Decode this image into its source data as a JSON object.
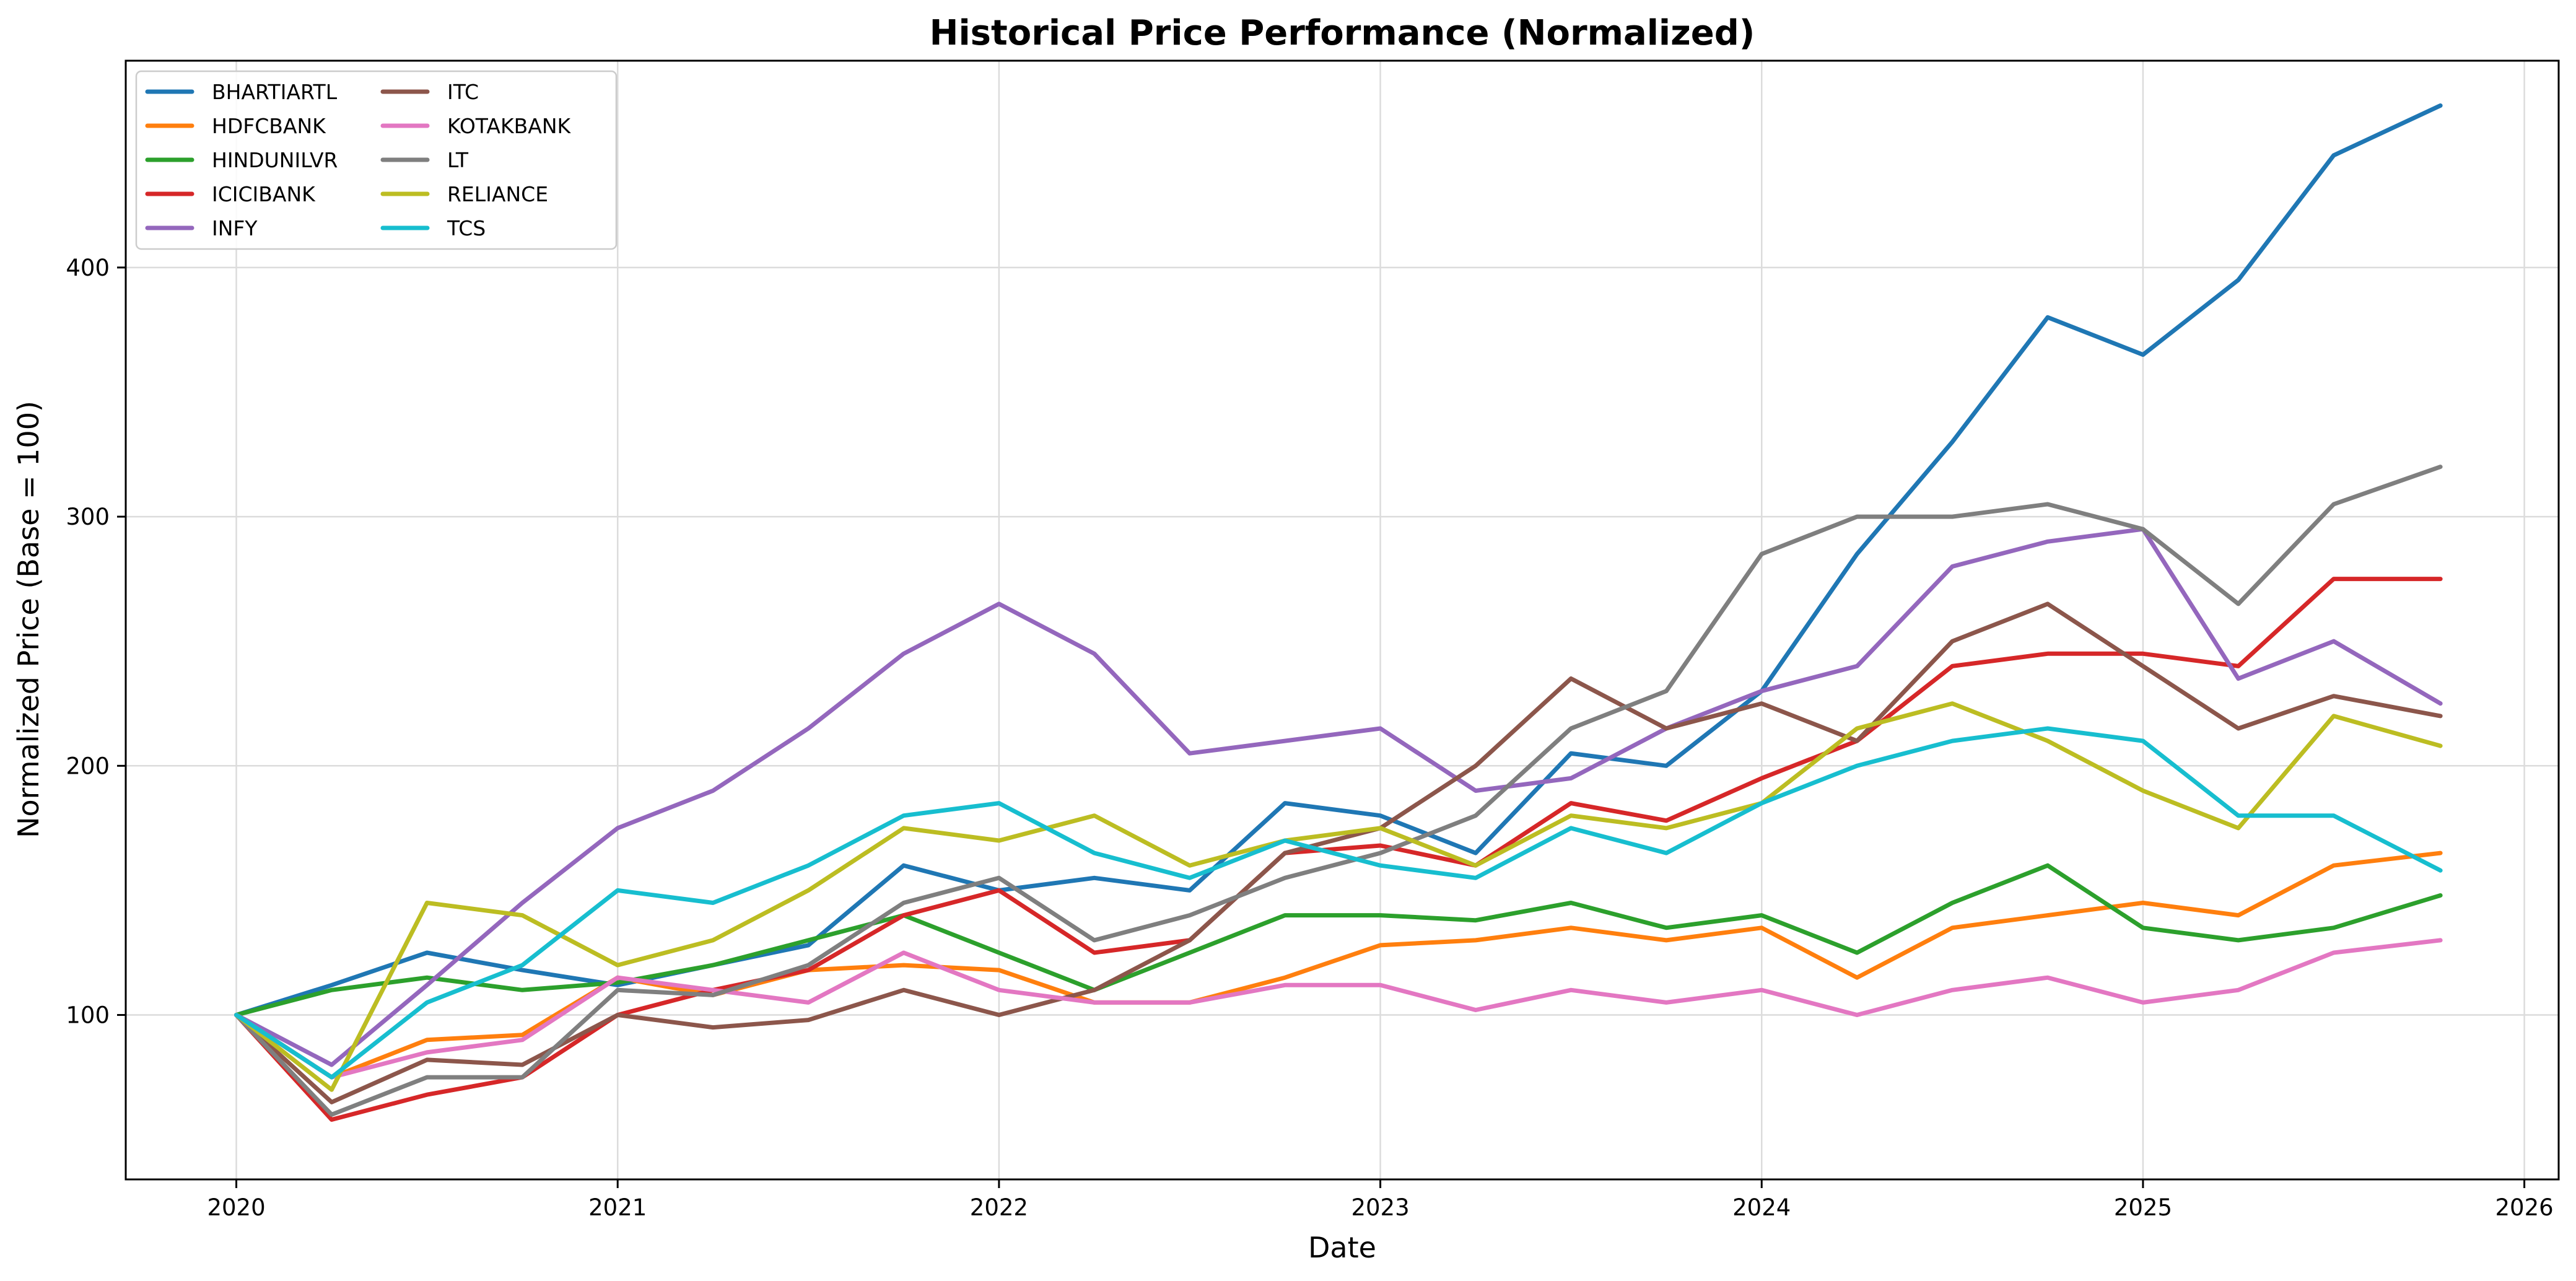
{
  "chart_data": {
    "type": "line",
    "title": "Historical Price Performance (Normalized)",
    "xlabel": "Date",
    "ylabel": "Normalized Price (Base = 100)",
    "x_ticks": [
      "2020",
      "2021",
      "2022",
      "2023",
      "2024",
      "2025",
      "2026"
    ],
    "y_ticks": [
      "100",
      "200",
      "300",
      "400"
    ],
    "xlim": [
      2019.71,
      2026.09
    ],
    "ylim": [
      34,
      483
    ],
    "grid": true,
    "legend": {
      "placement": "top-left",
      "columns": 2
    },
    "x": [
      2020.0,
      2020.25,
      2020.5,
      2020.75,
      2021.0,
      2021.25,
      2021.5,
      2021.75,
      2022.0,
      2022.25,
      2022.5,
      2022.75,
      2023.0,
      2023.25,
      2023.5,
      2023.75,
      2024.0,
      2024.25,
      2024.5,
      2024.75,
      2025.0,
      2025.25,
      2025.5,
      2025.78
    ],
    "series": [
      {
        "name": "BHARTIARTL",
        "color": "#1f77b4",
        "values": [
          100,
          112,
          125,
          118,
          112,
          120,
          128,
          160,
          150,
          155,
          150,
          185,
          180,
          165,
          205,
          200,
          230,
          285,
          330,
          380,
          365,
          395,
          445,
          465
        ]
      },
      {
        "name": "HDFCBANK",
        "color": "#ff7f0e",
        "values": [
          100,
          75,
          90,
          92,
          115,
          108,
          118,
          120,
          118,
          105,
          105,
          115,
          128,
          130,
          135,
          130,
          135,
          115,
          135,
          140,
          145,
          140,
          160,
          165
        ]
      },
      {
        "name": "HINDUNILVR",
        "color": "#2ca02c",
        "values": [
          100,
          110,
          115,
          110,
          113,
          120,
          130,
          140,
          125,
          110,
          125,
          140,
          140,
          138,
          145,
          135,
          140,
          125,
          145,
          160,
          135,
          130,
          135,
          148
        ]
      },
      {
        "name": "ICICIBANK",
        "color": "#d62728",
        "values": [
          100,
          58,
          68,
          75,
          100,
          110,
          118,
          140,
          150,
          125,
          130,
          165,
          168,
          160,
          185,
          178,
          195,
          210,
          240,
          245,
          245,
          240,
          275,
          275
        ]
      },
      {
        "name": "INFY",
        "color": "#9467bd",
        "values": [
          100,
          80,
          112,
          145,
          175,
          190,
          215,
          245,
          265,
          245,
          205,
          210,
          215,
          190,
          195,
          215,
          230,
          240,
          280,
          290,
          295,
          235,
          250,
          225
        ]
      },
      {
        "name": "ITC",
        "color": "#8c564b",
        "values": [
          100,
          65,
          82,
          80,
          100,
          95,
          98,
          110,
          100,
          110,
          130,
          165,
          175,
          200,
          235,
          215,
          225,
          210,
          250,
          265,
          240,
          215,
          228,
          220
        ]
      },
      {
        "name": "KOTAKBANK",
        "color": "#e377c2",
        "values": [
          100,
          75,
          85,
          90,
          115,
          110,
          105,
          125,
          110,
          105,
          105,
          112,
          112,
          102,
          110,
          105,
          110,
          100,
          110,
          115,
          105,
          110,
          125,
          130
        ]
      },
      {
        "name": "LT",
        "color": "#7f7f7f",
        "values": [
          100,
          60,
          75,
          75,
          110,
          108,
          120,
          145,
          155,
          130,
          140,
          155,
          165,
          180,
          215,
          230,
          285,
          300,
          300,
          305,
          295,
          265,
          305,
          320
        ]
      },
      {
        "name": "RELIANCE",
        "color": "#bcbd22",
        "values": [
          100,
          70,
          145,
          140,
          120,
          130,
          150,
          175,
          170,
          180,
          160,
          170,
          175,
          160,
          180,
          175,
          185,
          215,
          225,
          210,
          190,
          175,
          220,
          208
        ]
      },
      {
        "name": "TCS",
        "color": "#17becf",
        "values": [
          100,
          75,
          105,
          120,
          150,
          145,
          160,
          180,
          185,
          165,
          155,
          170,
          160,
          155,
          175,
          165,
          185,
          200,
          210,
          215,
          210,
          180,
          180,
          158
        ]
      }
    ]
  }
}
